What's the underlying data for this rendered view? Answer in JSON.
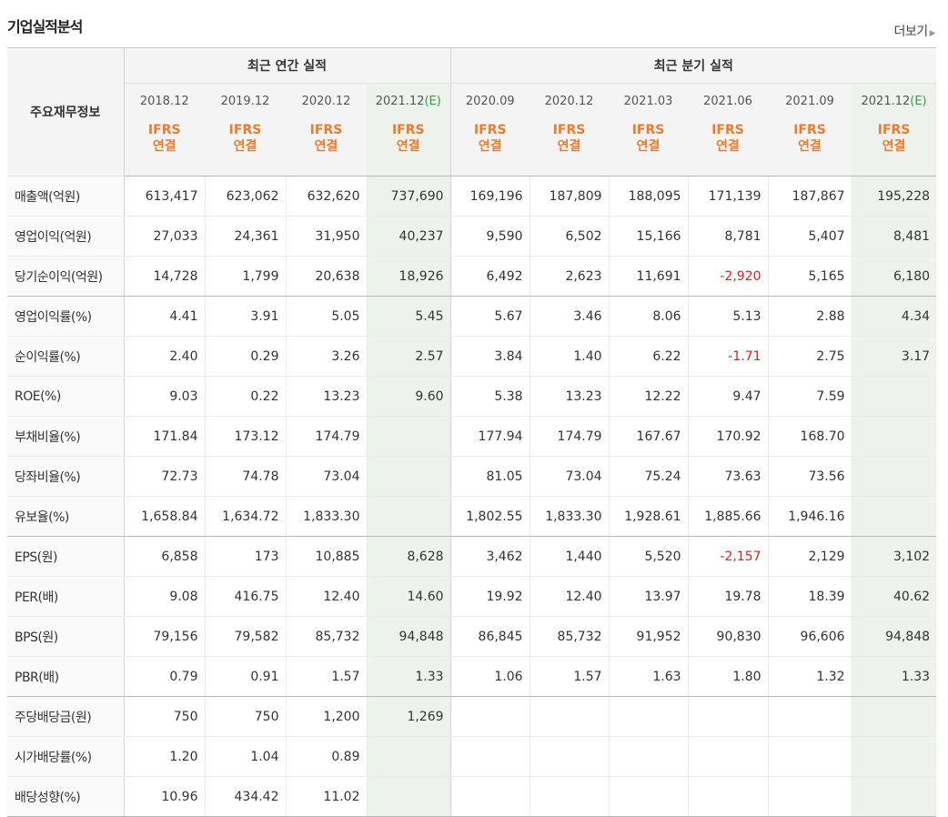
{
  "header": {
    "title": "기업실적분석",
    "more_label": "더보기"
  },
  "table": {
    "row_header_label": "주요재무정보",
    "groups": [
      {
        "label": "최근 연간 실적"
      },
      {
        "label": "최근 분기 실적"
      }
    ],
    "columns": [
      {
        "period": "2018.12",
        "estimate": "",
        "ifrs": "IFRS",
        "consol": "연결"
      },
      {
        "period": "2019.12",
        "estimate": "",
        "ifrs": "IFRS",
        "consol": "연결"
      },
      {
        "period": "2020.12",
        "estimate": "",
        "ifrs": "IFRS",
        "consol": "연결"
      },
      {
        "period": "2021.12",
        "estimate": "(E)",
        "ifrs": "IFRS",
        "consol": "연결"
      },
      {
        "period": "2020.09",
        "estimate": "",
        "ifrs": "IFRS",
        "consol": "연결"
      },
      {
        "period": "2020.12",
        "estimate": "",
        "ifrs": "IFRS",
        "consol": "연결"
      },
      {
        "period": "2021.03",
        "estimate": "",
        "ifrs": "IFRS",
        "consol": "연결"
      },
      {
        "period": "2021.06",
        "estimate": "",
        "ifrs": "IFRS",
        "consol": "연결"
      },
      {
        "period": "2021.09",
        "estimate": "",
        "ifrs": "IFRS",
        "consol": "연결"
      },
      {
        "period": "2021.12",
        "estimate": "(E)",
        "ifrs": "IFRS",
        "consol": "연결"
      }
    ],
    "rows": [
      {
        "label": "매출액(억원)",
        "values": [
          "613,417",
          "623,062",
          "632,620",
          "737,690",
          "169,196",
          "187,809",
          "188,095",
          "171,139",
          "187,867",
          "195,228"
        ]
      },
      {
        "label": "영업이익(억원)",
        "values": [
          "27,033",
          "24,361",
          "31,950",
          "40,237",
          "9,590",
          "6,502",
          "15,166",
          "8,781",
          "5,407",
          "8,481"
        ]
      },
      {
        "label": "당기순이익(억원)",
        "values": [
          "14,728",
          "1,799",
          "20,638",
          "18,926",
          "6,492",
          "2,623",
          "11,691",
          "-2,920",
          "5,165",
          "6,180"
        ]
      },
      {
        "label": "영업이익률(%)",
        "values": [
          "4.41",
          "3.91",
          "5.05",
          "5.45",
          "5.67",
          "3.46",
          "8.06",
          "5.13",
          "2.88",
          "4.34"
        ]
      },
      {
        "label": "순이익률(%)",
        "values": [
          "2.40",
          "0.29",
          "3.26",
          "2.57",
          "3.84",
          "1.40",
          "6.22",
          "-1.71",
          "2.75",
          "3.17"
        ]
      },
      {
        "label": "ROE(%)",
        "values": [
          "9.03",
          "0.22",
          "13.23",
          "9.60",
          "5.38",
          "13.23",
          "12.22",
          "9.47",
          "7.59",
          ""
        ]
      },
      {
        "label": "부채비율(%)",
        "values": [
          "171.84",
          "173.12",
          "174.79",
          "",
          "177.94",
          "174.79",
          "167.67",
          "170.92",
          "168.70",
          ""
        ]
      },
      {
        "label": "당좌비율(%)",
        "values": [
          "72.73",
          "74.78",
          "73.04",
          "",
          "81.05",
          "73.04",
          "75.24",
          "73.63",
          "73.56",
          ""
        ]
      },
      {
        "label": "유보율(%)",
        "values": [
          "1,658.84",
          "1,634.72",
          "1,833.30",
          "",
          "1,802.55",
          "1,833.30",
          "1,928.61",
          "1,885.66",
          "1,946.16",
          ""
        ]
      },
      {
        "label": "EPS(원)",
        "values": [
          "6,858",
          "173",
          "10,885",
          "8,628",
          "3,462",
          "1,440",
          "5,520",
          "-2,157",
          "2,129",
          "3,102"
        ]
      },
      {
        "label": "PER(배)",
        "values": [
          "9.08",
          "416.75",
          "12.40",
          "14.60",
          "19.92",
          "12.40",
          "13.97",
          "19.78",
          "18.39",
          "40.62"
        ]
      },
      {
        "label": "BPS(원)",
        "values": [
          "79,156",
          "79,582",
          "85,732",
          "94,848",
          "86,845",
          "85,732",
          "91,952",
          "90,830",
          "96,606",
          "94,848"
        ]
      },
      {
        "label": "PBR(배)",
        "values": [
          "0.79",
          "0.91",
          "1.57",
          "1.33",
          "1.06",
          "1.57",
          "1.63",
          "1.80",
          "1.32",
          "1.33"
        ]
      },
      {
        "label": "주당배당금(원)",
        "values": [
          "750",
          "750",
          "1,200",
          "1,269",
          "",
          "",
          "",
          "",
          "",
          ""
        ]
      },
      {
        "label": "시가배당률(%)",
        "values": [
          "1.20",
          "1.04",
          "0.89",
          "",
          "",
          "",
          "",
          "",
          "",
          ""
        ]
      },
      {
        "label": "배당성향(%)",
        "values": [
          "10.96",
          "434.42",
          "11.02",
          "",
          "",
          "",
          "",
          "",
          "",
          ""
        ]
      }
    ]
  }
}
